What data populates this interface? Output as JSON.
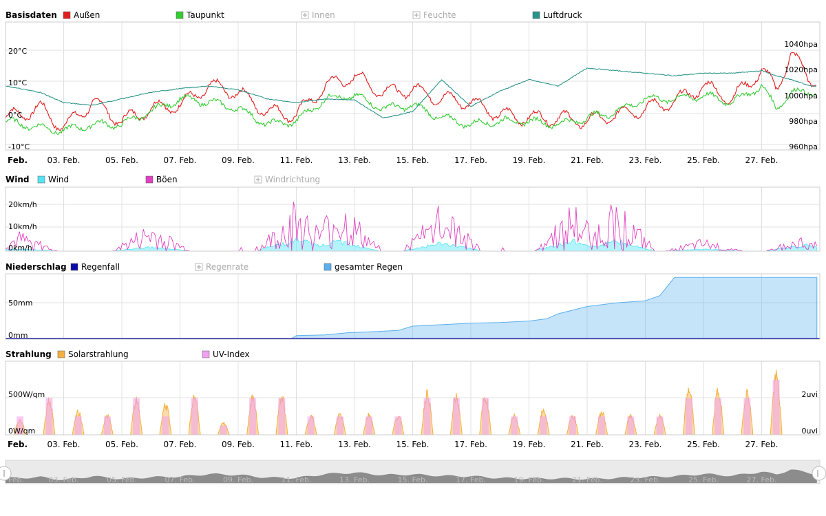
{
  "x_labels": [
    "Feb.",
    "03. Feb.",
    "05. Feb.",
    "07. Feb.",
    "09. Feb.",
    "11. Feb.",
    "13. Feb.",
    "15. Feb.",
    "17. Feb.",
    "19. Feb.",
    "21. Feb.",
    "23. Feb.",
    "25. Feb.",
    "27. Feb."
  ],
  "colors": {
    "aussen": "#e11d1d",
    "taupunkt": "#33cc33",
    "luftdruck": "#2a948a",
    "wind": "#56e4f5",
    "boeen": "#e040c0",
    "regenfall": "#0a0aaa",
    "gesamter_regen": "#5ab0ee",
    "solar": "#f5b040",
    "uv": "#f0a0f0"
  },
  "chart_data": [
    {
      "type": "line",
      "title": "Basisdaten",
      "legend": [
        {
          "name": "Außen",
          "enabled": true,
          "color": "#e11d1d"
        },
        {
          "name": "Taupunkt",
          "enabled": true,
          "color": "#33cc33"
        },
        {
          "name": "Innen",
          "enabled": false
        },
        {
          "name": "Feuchte",
          "enabled": false
        },
        {
          "name": "Luftdruck",
          "enabled": true,
          "color": "#2a948a"
        }
      ],
      "y_left_ticks": [
        "20°C",
        "10°C",
        "0°C",
        "-10°C"
      ],
      "y_right_ticks": [
        "1040hpa",
        "1020hpa",
        "1000hpa",
        "980hpa",
        "960hpa"
      ],
      "ylim_left": [
        -10,
        30
      ],
      "ylim_right": [
        960,
        1060
      ],
      "x_days": [
        1,
        2.2,
        3,
        4,
        5,
        6,
        7,
        8,
        9,
        10,
        11,
        12,
        13,
        14,
        15,
        16,
        17,
        18,
        19,
        20,
        21,
        22,
        23,
        24,
        25,
        26,
        27,
        27.5,
        28,
        28.7
      ],
      "series": [
        {
          "name": "Außen",
          "values": [
            0,
            3,
            -3,
            5,
            -1,
            3,
            4,
            10,
            8,
            2,
            1,
            10,
            13,
            8,
            9,
            6,
            5,
            1,
            0,
            0,
            -1,
            1,
            3,
            5,
            10,
            6,
            15,
            9,
            20,
            12
          ]
        },
        {
          "name": "Taupunkt",
          "values": [
            -1,
            -3,
            -4,
            -2,
            -2,
            2,
            6,
            5,
            3,
            -2,
            -1,
            6,
            7,
            3,
            4,
            0,
            -2,
            -1,
            -1,
            -2,
            0,
            2,
            6,
            6,
            7,
            5,
            10,
            3,
            8,
            8
          ]
        },
        {
          "name": "Luftdruck",
          "values": [
            1010,
            1005,
            997,
            995,
            1000,
            1005,
            1008,
            1010,
            1007,
            1000,
            997,
            1000,
            999,
            985,
            990,
            1015,
            994,
            1006,
            1015,
            1010,
            1024,
            1022,
            1020,
            1018,
            1020,
            1020,
            1022,
            1018,
            1015,
            1010
          ]
        }
      ]
    },
    {
      "type": "area",
      "title": "Wind",
      "legend": [
        {
          "name": "Wind",
          "enabled": true,
          "color": "#56e4f5"
        },
        {
          "name": "Böen",
          "enabled": true,
          "color": "#e040c0"
        },
        {
          "name": "Windrichtung",
          "enabled": false
        }
      ],
      "y_ticks": [
        "20km/h",
        "10km/h",
        "0km/h"
      ],
      "ylim": [
        0,
        25
      ],
      "series": [
        {
          "name": "Wind",
          "peak_days": [
            [
              1.5,
              1
            ],
            [
              6,
              2
            ],
            [
              11,
              6
            ],
            [
              12.5,
              5
            ],
            [
              16,
              4
            ],
            [
              20.5,
              5
            ],
            [
              22,
              5
            ],
            [
              25,
              1
            ],
            [
              28.5,
              3
            ]
          ]
        },
        {
          "name": "Böen",
          "peak_days": [
            [
              1.5,
              8
            ],
            [
              6,
              12
            ],
            [
              11,
              22
            ],
            [
              12.5,
              23
            ],
            [
              16,
              20
            ],
            [
              20.5,
              20
            ],
            [
              22,
              22
            ],
            [
              25,
              5
            ],
            [
              28.5,
              7
            ]
          ]
        }
      ]
    },
    {
      "type": "area",
      "title": "Niederschlag",
      "legend": [
        {
          "name": "Regenfall",
          "enabled": true,
          "color": "#0a0aaa"
        },
        {
          "name": "Regenrate",
          "enabled": false
        },
        {
          "name": "gesamter Regen",
          "enabled": true,
          "color": "#5ab0ee"
        }
      ],
      "y_ticks": [
        "50mm",
        "0mm"
      ],
      "ylim": [
        0,
        90
      ],
      "x_days": [
        1,
        10.8,
        11,
        12,
        12.8,
        13.5,
        14.5,
        15,
        16,
        17,
        18,
        19,
        19.6,
        20,
        21,
        22,
        23,
        23.5,
        24,
        28.9
      ],
      "series": [
        {
          "name": "gesamter Regen",
          "values": [
            0,
            0,
            5,
            6,
            9,
            10,
            12,
            18,
            20,
            22,
            23,
            25,
            28,
            35,
            45,
            50,
            53,
            60,
            85,
            85
          ]
        }
      ]
    },
    {
      "type": "area",
      "title": "Strahlung",
      "legend": [
        {
          "name": "Solarstrahlung",
          "enabled": true,
          "color": "#f5b040"
        },
        {
          "name": "UV-Index",
          "enabled": true,
          "color": "#f0a0f0"
        }
      ],
      "y_left_ticks": [
        "500W/qm",
        "0W/qm"
      ],
      "y_right_ticks": [
        "2uvi",
        "0uvi"
      ],
      "ylim_left": [
        0,
        1000
      ],
      "series": [
        {
          "name": "Solarstrahlung",
          "daily_peaks": [
            200,
            450,
            300,
            250,
            450,
            400,
            520,
            150,
            480,
            500,
            250,
            280,
            270,
            250,
            550,
            500,
            500,
            250,
            320,
            250,
            300,
            250,
            250,
            620,
            580,
            560,
            770
          ]
        },
        {
          "name": "UV-Index",
          "daily_peaks": [
            1,
            2,
            1,
            1,
            2,
            1,
            2,
            0.5,
            2,
            2,
            1,
            1,
            1,
            1,
            2,
            2,
            2,
            1,
            1,
            1,
            1,
            1,
            1,
            2,
            2,
            2,
            3
          ]
        }
      ]
    }
  ]
}
